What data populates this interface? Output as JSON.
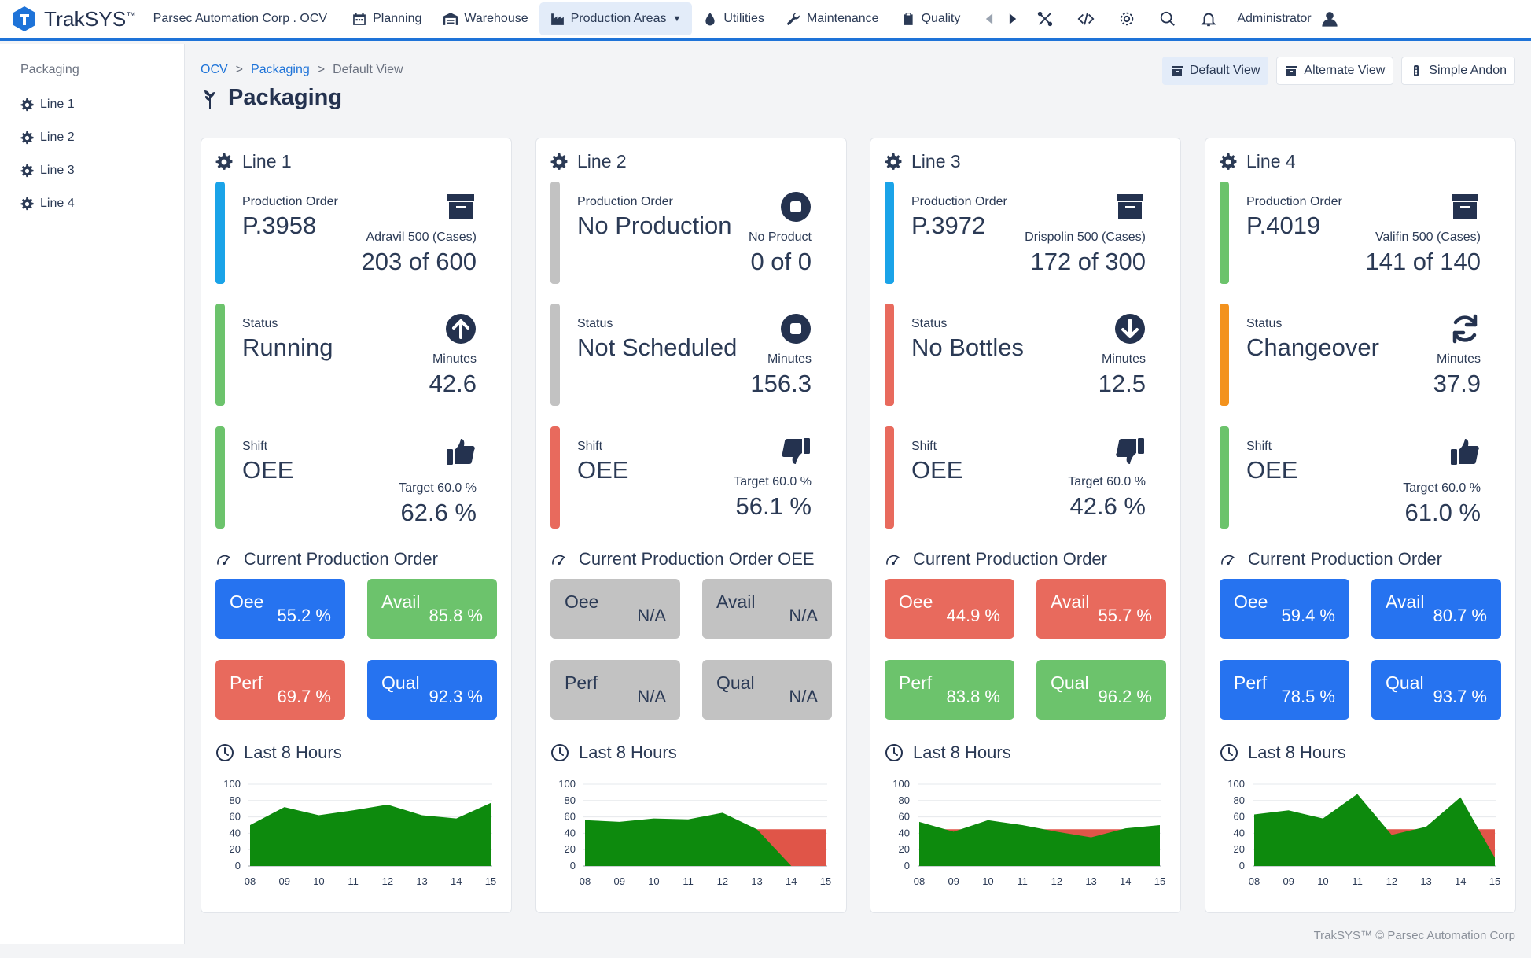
{
  "app": {
    "name": "TrakSYS",
    "tm": "™",
    "org": "Parsec Automation Corp . OCV"
  },
  "nav": [
    {
      "label": "Planning",
      "icon": "calendar-icon"
    },
    {
      "label": "Warehouse",
      "icon": "warehouse-icon"
    },
    {
      "label": "Production Areas",
      "icon": "factory-icon",
      "active": true
    },
    {
      "label": "Utilities",
      "icon": "droplet-icon"
    },
    {
      "label": "Maintenance",
      "icon": "wrench-icon"
    },
    {
      "label": "Quality",
      "icon": "clipboard-icon"
    }
  ],
  "user": {
    "name": "Administrator"
  },
  "sidebar": {
    "title": "Packaging",
    "items": [
      {
        "label": "Line 1"
      },
      {
        "label": "Line 2"
      },
      {
        "label": "Line 3"
      },
      {
        "label": "Line 4"
      }
    ]
  },
  "breadcrumb": {
    "root": "OCV",
    "area": "Packaging",
    "current": "Default View",
    "sep": ">"
  },
  "page_title": "Packaging",
  "views": [
    {
      "label": "Default View",
      "active": true
    },
    {
      "label": "Alternate View"
    },
    {
      "label": "Simple Andon"
    }
  ],
  "colors": {
    "blue": "#2673f0",
    "green": "#6cc36c",
    "red": "#e86a5d",
    "gray": "#c2c2c2",
    "orange": "#f3921d",
    "cyan": "#1aa3e8",
    "navy": "#24324f",
    "area_green": "#0d8a0d",
    "area_red": "#e05548"
  },
  "labels": {
    "order": "Production Order",
    "status": "Status",
    "minutes": "Minutes",
    "shift": "Shift",
    "oee": "OEE",
    "last8": "Last 8 Hours",
    "oee_tile": "Oee",
    "avail": "Avail",
    "perf": "Perf",
    "qual": "Qual"
  },
  "lines": [
    {
      "title": "Line 1",
      "order": {
        "value": "P.3958",
        "product": "Adravil 500 (Cases)",
        "progress": "203 of 600",
        "icon": "archive-icon",
        "bar": "cyan"
      },
      "status": {
        "value": "Running",
        "minutes": "42.6",
        "icon": "arrow-up-circle-icon",
        "bar": "green"
      },
      "shift": {
        "target": "Target 60.0 %",
        "oee": "62.6 %",
        "icon": "thumbs-up-icon",
        "bar": "green"
      },
      "section_title": "Current Production Order",
      "tiles": {
        "oee": {
          "value": "55.2 %",
          "color": "blue"
        },
        "avail": {
          "value": "85.8 %",
          "color": "green"
        },
        "perf": {
          "value": "69.7 %",
          "color": "red"
        },
        "qual": {
          "value": "92.3 %",
          "color": "blue"
        }
      },
      "chart": {
        "green": [
          50,
          72,
          62,
          68,
          75,
          62,
          58,
          77
        ],
        "red": null
      }
    },
    {
      "title": "Line 2",
      "order": {
        "value": "No Production",
        "product": "No Product",
        "progress": "0 of 0",
        "icon": "stop-circle-icon",
        "bar": "gray"
      },
      "status": {
        "value": "Not Scheduled",
        "minutes": "156.3",
        "icon": "stop-circle-icon",
        "bar": "gray"
      },
      "shift": {
        "target": "Target 60.0 %",
        "oee": "56.1 %",
        "icon": "thumbs-down-icon",
        "bar": "red"
      },
      "section_title": "Current Production Order OEE",
      "tiles": {
        "oee": {
          "value": "N/A",
          "color": "gray"
        },
        "avail": {
          "value": "N/A",
          "color": "gray"
        },
        "perf": {
          "value": "N/A",
          "color": "gray"
        },
        "qual": {
          "value": "N/A",
          "color": "gray"
        }
      },
      "chart": {
        "green": [
          56,
          54,
          58,
          57,
          65,
          45,
          0,
          0
        ],
        "red": [
          45,
          45
        ]
      }
    },
    {
      "title": "Line 3",
      "order": {
        "value": "P.3972",
        "product": "Drispolin 500 (Cases)",
        "progress": "172 of 300",
        "icon": "archive-icon",
        "bar": "cyan"
      },
      "status": {
        "value": "No Bottles",
        "minutes": "12.5",
        "icon": "arrow-down-circle-icon",
        "bar": "red"
      },
      "shift": {
        "target": "Target 60.0 %",
        "oee": "42.6 %",
        "icon": "thumbs-down-icon",
        "bar": "red"
      },
      "section_title": "Current Production Order",
      "tiles": {
        "oee": {
          "value": "44.9 %",
          "color": "red"
        },
        "avail": {
          "value": "55.7 %",
          "color": "red"
        },
        "perf": {
          "value": "83.8 %",
          "color": "green"
        },
        "qual": {
          "value": "96.2 %",
          "color": "green"
        }
      },
      "chart": {
        "green": [
          54,
          42,
          56,
          50,
          42,
          35,
          46,
          50
        ],
        "red": [
          45,
          45
        ]
      }
    },
    {
      "title": "Line 4",
      "order": {
        "value": "P.4019",
        "product": "Valifin 500 (Cases)",
        "progress": "141 of 140",
        "icon": "archive-icon",
        "bar": "green"
      },
      "status": {
        "value": "Changeover",
        "minutes": "37.9",
        "icon": "refresh-icon",
        "bar": "orange"
      },
      "shift": {
        "target": "Target 60.0 %",
        "oee": "61.0 %",
        "icon": "thumbs-up-icon",
        "bar": "green"
      },
      "section_title": "Current Production Order",
      "tiles": {
        "oee": {
          "value": "59.4 %",
          "color": "blue"
        },
        "avail": {
          "value": "80.7 %",
          "color": "blue"
        },
        "perf": {
          "value": "78.5 %",
          "color": "blue"
        },
        "qual": {
          "value": "93.7 %",
          "color": "blue"
        }
      },
      "chart": {
        "green": [
          63,
          68,
          58,
          88,
          38,
          48,
          84,
          10
        ],
        "red": [
          45,
          45
        ]
      }
    }
  ],
  "chart_data": [
    {
      "type": "area",
      "title": "Last 8 Hours",
      "x": [
        "08",
        "09",
        "10",
        "11",
        "12",
        "13",
        "14",
        "15"
      ],
      "yticks": [
        0,
        20,
        40,
        60,
        80,
        100
      ],
      "ylim": [
        0,
        100
      ],
      "series": [
        {
          "values": [
            50,
            72,
            62,
            68,
            75,
            62,
            58,
            77
          ]
        }
      ]
    },
    {
      "type": "area",
      "title": "Last 8 Hours",
      "x": [
        "08",
        "09",
        "10",
        "11",
        "12",
        "13",
        "14",
        "15"
      ],
      "yticks": [
        0,
        20,
        40,
        60,
        80,
        100
      ],
      "ylim": [
        0,
        100
      ],
      "series": [
        {
          "values": [
            56,
            54,
            58,
            57,
            65,
            45,
            0,
            0
          ]
        },
        {
          "values": [
            45,
            45,
            45,
            45,
            45,
            45,
            45,
            45
          ]
        }
      ]
    },
    {
      "type": "area",
      "title": "Last 8 Hours",
      "x": [
        "08",
        "09",
        "10",
        "11",
        "12",
        "13",
        "14",
        "15"
      ],
      "yticks": [
        0,
        20,
        40,
        60,
        80,
        100
      ],
      "ylim": [
        0,
        100
      ],
      "series": [
        {
          "values": [
            54,
            42,
            56,
            50,
            42,
            35,
            46,
            50
          ]
        },
        {
          "values": [
            45,
            45,
            45,
            45,
            45,
            45,
            45,
            45
          ]
        }
      ]
    },
    {
      "type": "area",
      "title": "Last 8 Hours",
      "x": [
        "08",
        "09",
        "10",
        "11",
        "12",
        "13",
        "14",
        "15"
      ],
      "yticks": [
        0,
        20,
        40,
        60,
        80,
        100
      ],
      "ylim": [
        0,
        100
      ],
      "series": [
        {
          "values": [
            63,
            68,
            58,
            88,
            38,
            48,
            84,
            10
          ]
        },
        {
          "values": [
            45,
            45,
            45,
            45,
            45,
            45,
            45,
            45
          ]
        }
      ]
    }
  ],
  "footer": "TrakSYS™ © Parsec Automation Corp"
}
